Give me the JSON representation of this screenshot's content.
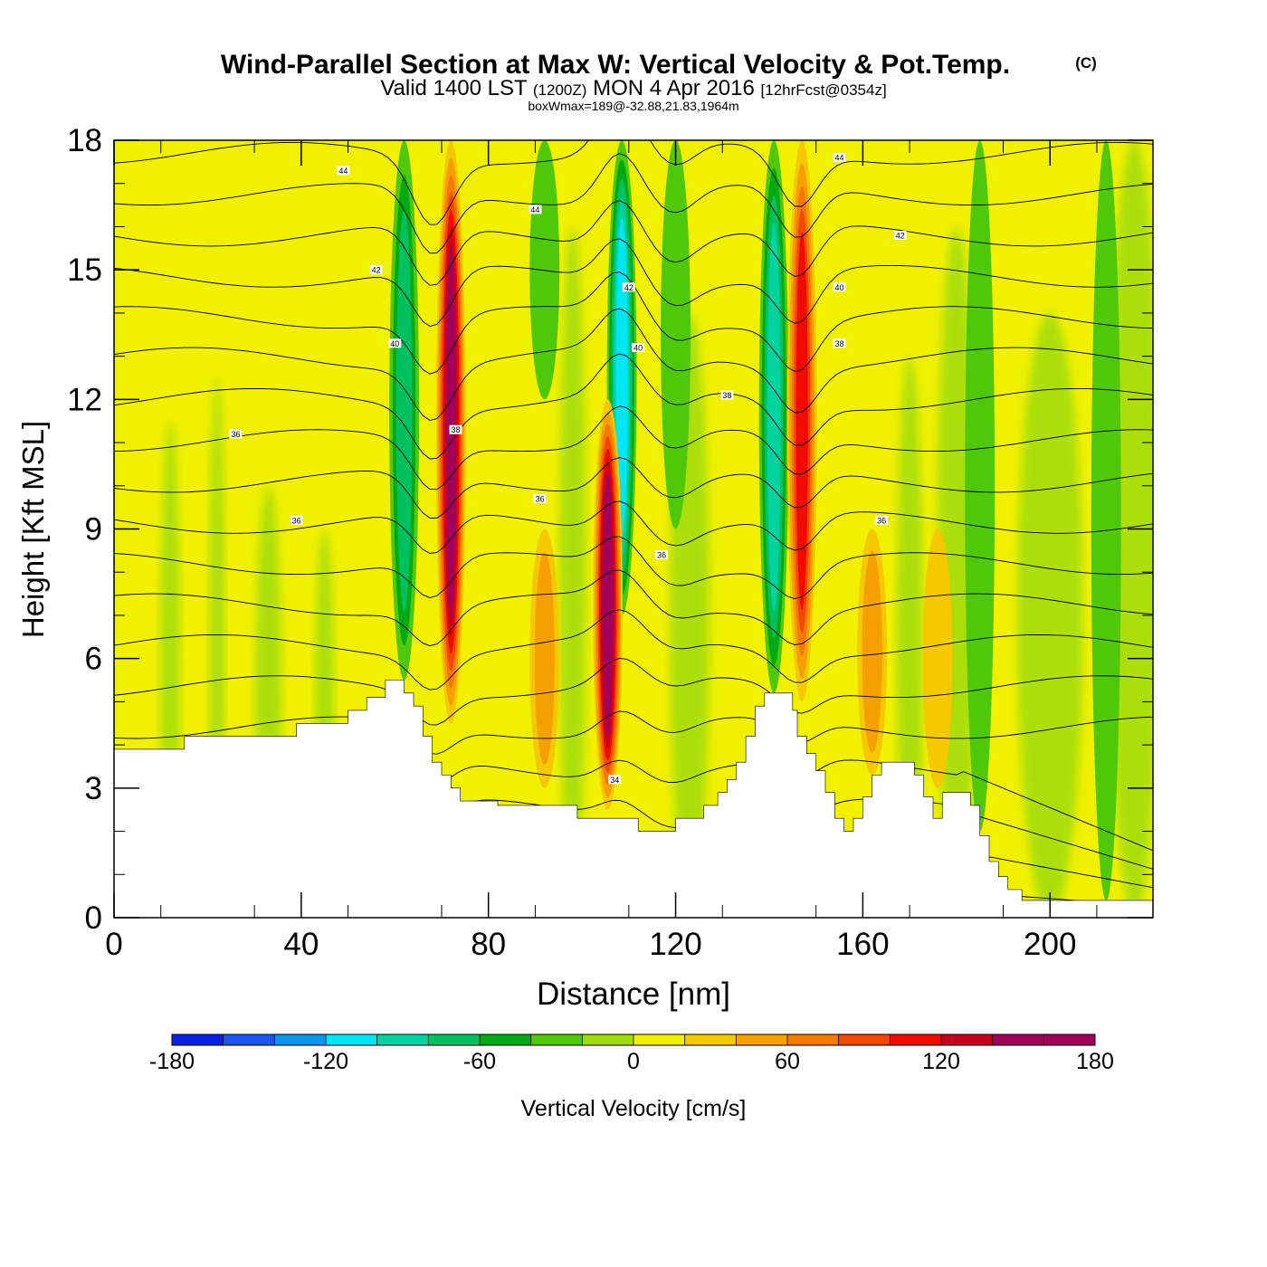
{
  "header": {
    "title": "Wind-Parallel Section at Max W: Vertical Velocity & Pot.Temp.",
    "copyright": "(C)",
    "valid_prefix": "Valid 1400 LST",
    "valid_utc": "(1200Z)",
    "valid_date": "MON 4 Apr 2016",
    "forecast": "[12hrFcst@0354z]",
    "box_wmax": "boxWmax=189@-32.88,21.83,1964m"
  },
  "chart_data": {
    "type": "heatmap",
    "xlabel": "Distance [nm]",
    "ylabel": "Height [Kft MSL]",
    "xlim": [
      0,
      222
    ],
    "ylim": [
      0,
      18
    ],
    "x_ticks": [
      "0",
      "40",
      "80",
      "120",
      "160",
      "200"
    ],
    "y_ticks": [
      "0",
      "3",
      "6",
      "9",
      "12",
      "15",
      "18"
    ],
    "colorbar": {
      "label": "Vertical Velocity [cm/s]",
      "range": [
        -180,
        180
      ],
      "step": 20,
      "tick_labels": [
        "-180",
        "-120",
        "-60",
        "0",
        "60",
        "120",
        "180"
      ],
      "colors": [
        "#0a20e6",
        "#1a55f0",
        "#0a96f0",
        "#00e6f5",
        "#00d2a0",
        "#00c060",
        "#00aa14",
        "#50c80a",
        "#a0dc0a",
        "#f0f000",
        "#f5c800",
        "#f5a000",
        "#f57800",
        "#f54600",
        "#f00a00",
        "#c8001e",
        "#a0005a"
      ]
    },
    "terrain_kft": [
      [
        0,
        3.9
      ],
      [
        15,
        3.9
      ],
      [
        15,
        4.2
      ],
      [
        39,
        4.2
      ],
      [
        39,
        4.5
      ],
      [
        50,
        4.5
      ],
      [
        50,
        4.8
      ],
      [
        54,
        4.8
      ],
      [
        54,
        5.1
      ],
      [
        58,
        5.1
      ],
      [
        58,
        5.5
      ],
      [
        62,
        5.5
      ],
      [
        62,
        5.2
      ],
      [
        64,
        5.2
      ],
      [
        64,
        4.9
      ],
      [
        66,
        4.9
      ],
      [
        66,
        4.2
      ],
      [
        68,
        4.2
      ],
      [
        68,
        3.6
      ],
      [
        70,
        3.6
      ],
      [
        70,
        3.3
      ],
      [
        72,
        3.3
      ],
      [
        72,
        3.0
      ],
      [
        74,
        3.0
      ],
      [
        74,
        2.7
      ],
      [
        82,
        2.7
      ],
      [
        82,
        2.6
      ],
      [
        99,
        2.6
      ],
      [
        99,
        2.3
      ],
      [
        112,
        2.3
      ],
      [
        112,
        2.0
      ],
      [
        120,
        2.0
      ],
      [
        120,
        2.3
      ],
      [
        126,
        2.3
      ],
      [
        126,
        2.6
      ],
      [
        129,
        2.6
      ],
      [
        129,
        2.9
      ],
      [
        131,
        2.9
      ],
      [
        131,
        3.2
      ],
      [
        133,
        3.2
      ],
      [
        133,
        3.6
      ],
      [
        135,
        3.6
      ],
      [
        135,
        4.2
      ],
      [
        137,
        4.2
      ],
      [
        137,
        4.9
      ],
      [
        139,
        4.9
      ],
      [
        139,
        5.2
      ],
      [
        145,
        5.2
      ],
      [
        145,
        4.8
      ],
      [
        146,
        4.8
      ],
      [
        146,
        4.2
      ],
      [
        148,
        4.2
      ],
      [
        148,
        3.8
      ],
      [
        150,
        3.8
      ],
      [
        150,
        3.4
      ],
      [
        152,
        3.4
      ],
      [
        152,
        2.9
      ],
      [
        154,
        2.9
      ],
      [
        154,
        2.3
      ],
      [
        156,
        2.3
      ],
      [
        156,
        2.0
      ],
      [
        158,
        2.0
      ],
      [
        158,
        2.3
      ],
      [
        160,
        2.3
      ],
      [
        160,
        2.8
      ],
      [
        162,
        2.8
      ],
      [
        162,
        3.3
      ],
      [
        164,
        3.3
      ],
      [
        164,
        3.6
      ],
      [
        171,
        3.6
      ],
      [
        171,
        3.3
      ],
      [
        173,
        3.3
      ],
      [
        173,
        2.8
      ],
      [
        175,
        2.8
      ],
      [
        175,
        2.3
      ],
      [
        177,
        2.3
      ],
      [
        177,
        2.9
      ],
      [
        183,
        2.9
      ],
      [
        183,
        2.6
      ],
      [
        185,
        2.6
      ],
      [
        185,
        1.9
      ],
      [
        187,
        1.9
      ],
      [
        187,
        1.3
      ],
      [
        189,
        1.3
      ],
      [
        189,
        0.95
      ],
      [
        191,
        0.95
      ],
      [
        191,
        0.65
      ],
      [
        194,
        0.65
      ],
      [
        194,
        0.4
      ],
      [
        222,
        0.4
      ]
    ],
    "updrafts": [
      {
        "x": 72,
        "kft": [
          4.5,
          18
        ],
        "w": 150
      },
      {
        "x": 105.5,
        "kft": [
          2.5,
          12
        ],
        "w": 140
      },
      {
        "x": 147,
        "kft": [
          5,
          18
        ],
        "w": 110
      },
      {
        "x": 92,
        "kft": [
          3,
          9
        ],
        "w": 45
      },
      {
        "x": 162,
        "kft": [
          3,
          9
        ],
        "w": 40
      },
      {
        "x": 176,
        "kft": [
          3,
          9
        ],
        "w": 35
      }
    ],
    "downdrafts": [
      {
        "x": 62,
        "kft": [
          5.5,
          18
        ],
        "w": -70
      },
      {
        "x": 108.5,
        "kft": [
          7,
          18
        ],
        "w": -110
      },
      {
        "x": 141,
        "kft": [
          5,
          18
        ],
        "w": -85
      },
      {
        "x": 92,
        "kft": [
          12,
          18
        ],
        "w": -35
      },
      {
        "x": 120,
        "kft": [
          9,
          18
        ],
        "w": -35
      },
      {
        "x": 185,
        "kft": [
          2,
          18
        ],
        "w": -35
      },
      {
        "x": 212,
        "kft": [
          0,
          18
        ],
        "w": -30
      }
    ],
    "isentrope_labels": [
      "44",
      "42",
      "40",
      "38",
      "36",
      "34"
    ],
    "contour_labels": [
      {
        "x": 49,
        "kft": 17.3,
        "text": "44"
      },
      {
        "x": 90,
        "kft": 16.4,
        "text": "44"
      },
      {
        "x": 155,
        "kft": 17.6,
        "text": "44"
      },
      {
        "x": 168,
        "kft": 15.8,
        "text": "42"
      },
      {
        "x": 56,
        "kft": 15.0,
        "text": "42"
      },
      {
        "x": 110,
        "kft": 14.6,
        "text": "42"
      },
      {
        "x": 155,
        "kft": 14.6,
        "text": "40"
      },
      {
        "x": 60,
        "kft": 13.3,
        "text": "40"
      },
      {
        "x": 112,
        "kft": 13.2,
        "text": "40"
      },
      {
        "x": 155,
        "kft": 13.3,
        "text": "38"
      },
      {
        "x": 131,
        "kft": 12.1,
        "text": "38"
      },
      {
        "x": 73,
        "kft": 11.3,
        "text": "38"
      },
      {
        "x": 26,
        "kft": 11.2,
        "text": "36"
      },
      {
        "x": 39,
        "kft": 9.2,
        "text": "36"
      },
      {
        "x": 91,
        "kft": 9.7,
        "text": "36"
      },
      {
        "x": 117,
        "kft": 8.4,
        "text": "36"
      },
      {
        "x": 164,
        "kft": 9.2,
        "text": "36"
      },
      {
        "x": 107,
        "kft": 3.2,
        "text": "34"
      }
    ]
  }
}
